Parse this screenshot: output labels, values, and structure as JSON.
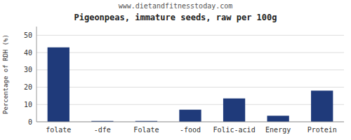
{
  "chart_data": {
    "type": "bar",
    "title": "Pigeonpeas, immature seeds, raw per 100g",
    "subtitle": "www.dietandfitnesstoday.com",
    "ylabel": "Percentage of RDH (%)",
    "categories": [
      "folate",
      "-dfe",
      "Folate",
      "-food",
      "Folic-acid",
      "Energy",
      "Protein"
    ],
    "values": [
      43,
      0.5,
      0.5,
      7,
      13.5,
      3.5,
      18
    ],
    "color": "#1f3a7a",
    "ylim": [
      0,
      55
    ],
    "yticks": [
      0,
      10,
      20,
      30,
      40,
      50
    ],
    "grid": true
  }
}
